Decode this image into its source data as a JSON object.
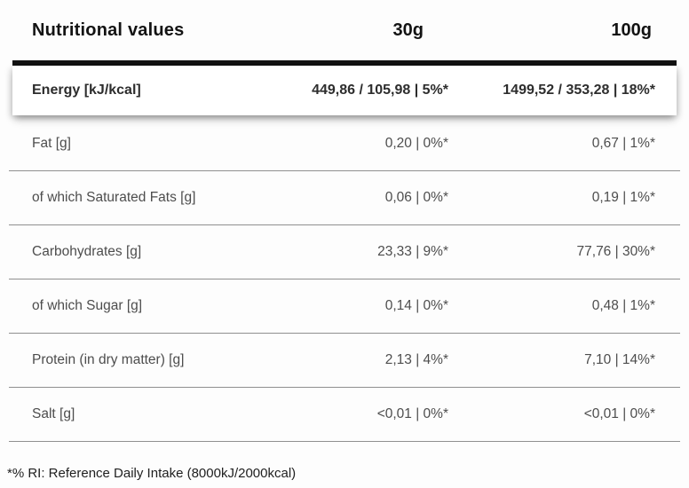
{
  "header": {
    "title": "Nutritional values",
    "col_30g": "30g",
    "col_100g": "100g"
  },
  "energy_row": {
    "label": "Energy [kJ/kcal]",
    "per_30g": "449,86 / 105,98 | 5%*",
    "per_100g": "1499,52 / 353,28 | 18%*"
  },
  "rows": [
    {
      "label": "Fat [g]",
      "per_30g": "0,20 | 0%*",
      "per_100g": "0,67 | 1%*"
    },
    {
      "label": "of which Saturated Fats [g]",
      "per_30g": "0,06 | 0%*",
      "per_100g": "0,19 | 1%*"
    },
    {
      "label": "Carbohydrates [g]",
      "per_30g": "23,33 | 9%*",
      "per_100g": "77,76 | 30%*"
    },
    {
      "label": "of which Sugar [g]",
      "per_30g": "0,14 | 0%*",
      "per_100g": "0,48 | 1%*"
    },
    {
      "label": "Protein (in dry matter) [g]",
      "per_30g": "2,13 | 4%*",
      "per_100g": "7,10 | 14%*"
    },
    {
      "label": "Salt [g]",
      "per_30g": "<0,01 | 0%*",
      "per_100g": "<0,01 | 0%*"
    }
  ],
  "footnote": "*% RI: Reference Daily Intake (8000kJ/2000kcal)",
  "colors": {
    "rule": "#131313",
    "separator": "#8f8f8f",
    "row_text": "#4d4d4d",
    "header_text": "#131313",
    "energy_text": "#2d2d2d",
    "background": "#fdfdfd",
    "card_background": "#ffffff"
  }
}
